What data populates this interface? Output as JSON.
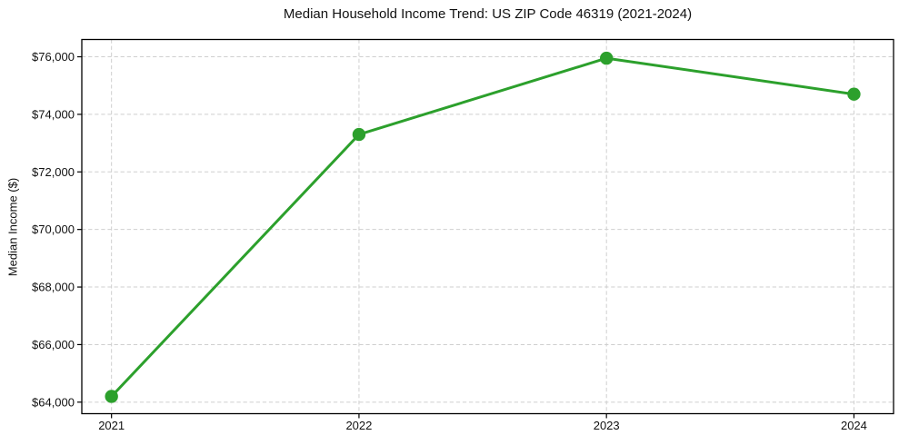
{
  "chart_data": {
    "type": "line",
    "title": "Median Household Income Trend: US ZIP Code 46319 (2021-2024)",
    "xlabel": "",
    "ylabel": "Median Income ($)",
    "x": [
      2021,
      2022,
      2023,
      2024
    ],
    "x_tick_labels": [
      "2021",
      "2022",
      "2023",
      "2024"
    ],
    "series": [
      {
        "name": "Median Household Income",
        "values": [
          64200,
          73300,
          75950,
          74700
        ],
        "color": "#2ca02c",
        "marker": "circle"
      }
    ],
    "y_ticks": [
      64000,
      66000,
      68000,
      70000,
      72000,
      74000,
      76000
    ],
    "y_tick_labels": [
      "$64,000",
      "$66,000",
      "$68,000",
      "$70,000",
      "$72,000",
      "$74,000",
      "$76,000"
    ],
    "ylim": [
      63600,
      76600
    ],
    "xlim": [
      2020.88,
      2024.16
    ],
    "grid": true,
    "grid_style": "dashed",
    "grid_color": "#cfcfcf",
    "axis_color": "#000000",
    "text_color": "#111111",
    "background_color": "#ffffff",
    "legend_position": "none"
  }
}
